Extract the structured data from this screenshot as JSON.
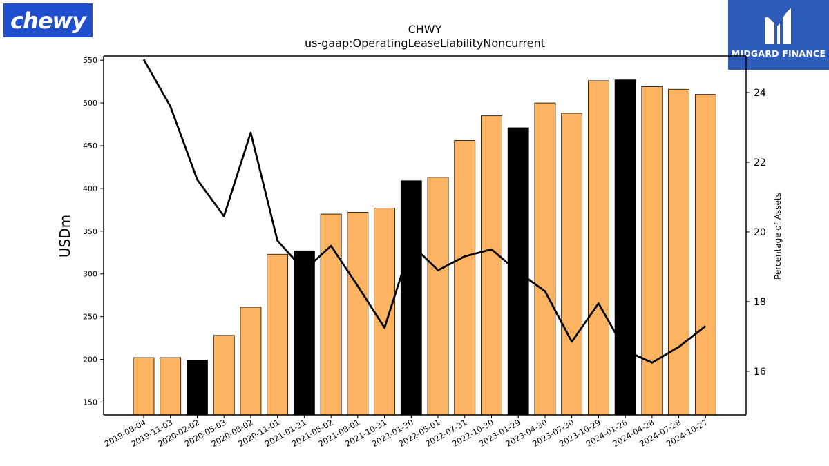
{
  "brand": {
    "logo_text": "chewy",
    "color": "#1f4fcf"
  },
  "partner": {
    "name": "MIDGARD FINANCE",
    "color": "#2e5bb7"
  },
  "chart_data": {
    "type": "bar",
    "title": "CHWY",
    "subtitle": "us-gaap:OperatingLeaseLiabilityNoncurrent",
    "ylabel": "USDm",
    "y2label": "Percentage of Assets",
    "ylim": [
      135,
      555
    ],
    "y2lim": [
      14.75,
      25.05
    ],
    "yticks": [
      150,
      200,
      250,
      300,
      350,
      400,
      450,
      500,
      550
    ],
    "y2ticks": [
      16,
      18,
      20,
      22,
      24
    ],
    "categories": [
      "2019-08-04",
      "2019-11-03",
      "2020-02-02",
      "2020-05-03",
      "2020-08-02",
      "2020-11-01",
      "2021-01-31",
      "2021-05-02",
      "2021-08-01",
      "2021-10-31",
      "2022-01-30",
      "2022-05-01",
      "2022-07-31",
      "2022-10-30",
      "2023-01-29",
      "2023-04-30",
      "2023-07-30",
      "2023-10-29",
      "2024-01-28",
      "2024-04-28",
      "2024-07-28",
      "2024-10-27"
    ],
    "series": [
      {
        "type": "bar",
        "axis": "left",
        "values": [
          202,
          202,
          199,
          228,
          261,
          323,
          327,
          370,
          372,
          377,
          409,
          413,
          456,
          485,
          471,
          500,
          488,
          526,
          527,
          519,
          516,
          510
        ]
      },
      {
        "type": "line",
        "axis": "right",
        "values": [
          24.95,
          23.6,
          21.5,
          20.45,
          22.85,
          19.75,
          18.9,
          19.6,
          18.45,
          17.25,
          19.65,
          18.9,
          19.3,
          19.5,
          18.85,
          18.3,
          16.85,
          17.95,
          16.6,
          16.25,
          16.7,
          17.3
        ]
      }
    ],
    "highlight_categories": [
      "2020-02-02",
      "2021-01-31",
      "2022-01-30",
      "2023-01-29",
      "2024-01-28"
    ],
    "colors": {
      "bar": "#fdb462",
      "highlight": "#000000",
      "line": "#000000"
    },
    "grid": false,
    "legend": "none"
  }
}
